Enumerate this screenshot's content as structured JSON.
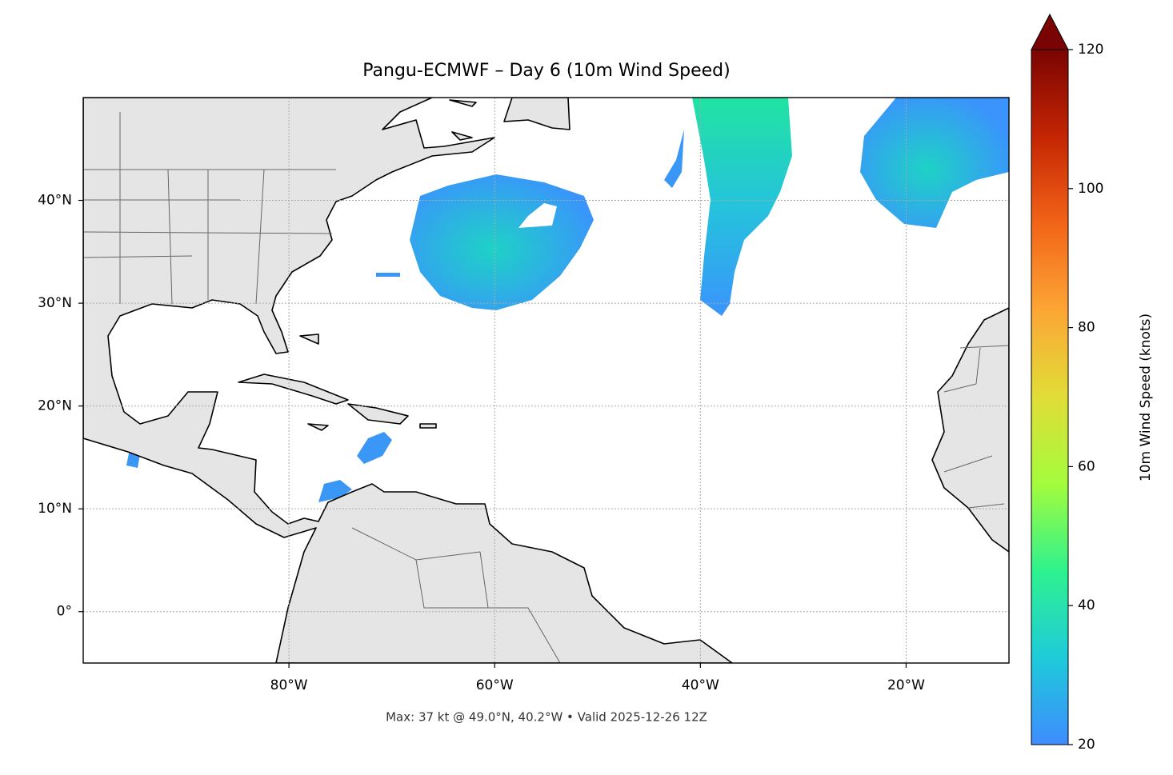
{
  "chart_data": {
    "type": "map",
    "title": "Pangu-ECMWF – Day 6 (10m Wind Speed)",
    "footnote": "Max: 37 kt @ 49.0°N, 40.2°W • Valid 2025-12-26 12Z",
    "xlim": [
      -100,
      -10
    ],
    "ylim": [
      -5,
      50
    ],
    "xticks": [
      {
        "value": -80,
        "label": "80°W"
      },
      {
        "value": -60,
        "label": "60°W"
      },
      {
        "value": -40,
        "label": "40°W"
      },
      {
        "value": -20,
        "label": "20°W"
      }
    ],
    "yticks": [
      {
        "value": 0,
        "label": "0°"
      },
      {
        "value": 10,
        "label": "10°N"
      },
      {
        "value": 20,
        "label": "20°N"
      },
      {
        "value": 30,
        "label": "30°N"
      },
      {
        "value": 40,
        "label": "40°N"
      }
    ],
    "grid": true,
    "colorbar": {
      "label": "10m Wind Speed (knots)",
      "lim": [
        20,
        120
      ],
      "ticks": [
        20,
        40,
        60,
        80,
        100,
        120
      ],
      "colors": [
        "#3e8cfe",
        "#1ecbda",
        "#2ef28e",
        "#a4fc3c",
        "#e1dd37",
        "#fca635",
        "#f26418",
        "#c42503",
        "#7a0403"
      ],
      "extend": "max"
    }
  }
}
